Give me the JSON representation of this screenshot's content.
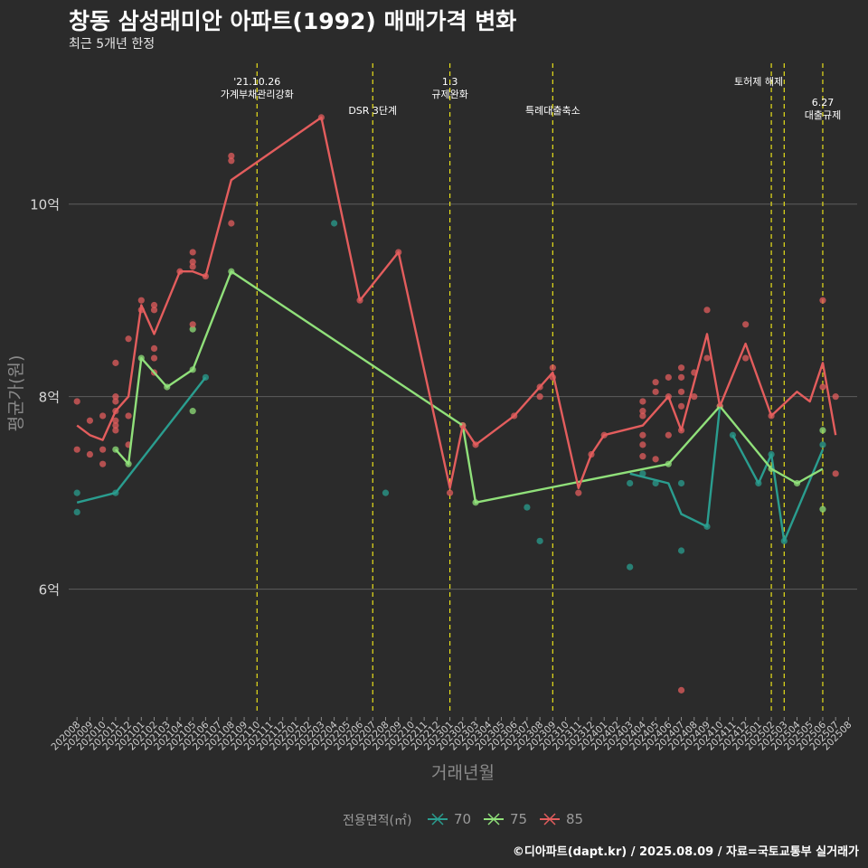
{
  "title": "창동 삼성래미안 아파트(1992) 매매가격 변화",
  "subtitle": "최근 5개년 한정",
  "caption": "©디아파트(dapt.kr) / 2025.08.09 / 자료=국토교통부 실거래가",
  "chart_data": {
    "type": "line",
    "xlabel": "거래년월",
    "ylabel": "평균가(원)",
    "ylim": [
      4.7,
      11.5
    ],
    "yticks": [
      {
        "v": 6,
        "label": "6억"
      },
      {
        "v": 8,
        "label": "8억"
      },
      {
        "v": 10,
        "label": "10억"
      }
    ],
    "grid": true,
    "legend_title": "전용면적(㎡)",
    "legend_position": "bottom",
    "categories": [
      "202008",
      "202009",
      "202010",
      "202011",
      "202012",
      "202101",
      "202102",
      "202103",
      "202104",
      "202105",
      "202106",
      "202107",
      "202108",
      "202109",
      "202110",
      "202111",
      "202112",
      "202201",
      "202202",
      "202203",
      "202204",
      "202205",
      "202206",
      "202207",
      "202208",
      "202209",
      "202210",
      "202211",
      "202212",
      "202301",
      "202302",
      "202303",
      "202304",
      "202305",
      "202306",
      "202307",
      "202308",
      "202309",
      "202310",
      "202311",
      "202312",
      "202401",
      "202402",
      "202403",
      "202404",
      "202405",
      "202406",
      "202407",
      "202408",
      "202409",
      "202410",
      "202411",
      "202412",
      "202501",
      "202502",
      "202503",
      "202504",
      "202505",
      "202506",
      "202507",
      "202508"
    ],
    "events": [
      {
        "x": "202110",
        "label": [
          "'21.10.26",
          "가계부채관리강화"
        ],
        "row": 0
      },
      {
        "x": "202207",
        "label": [
          "DSR 3단계"
        ],
        "row": 1
      },
      {
        "x": "202301",
        "label": [
          "1.3",
          "규제완화"
        ],
        "row": 0
      },
      {
        "x": "202309",
        "label": [
          "특례대출축소"
        ],
        "row": 1
      },
      {
        "x": "202502",
        "label": [
          "토허제 해제"
        ],
        "row": 0,
        "offset": 14
      },
      {
        "x": "202503",
        "label": [],
        "row": 0
      },
      {
        "x": "202506",
        "label": [
          "6.27",
          "대출규제"
        ],
        "row": 2
      }
    ],
    "series": [
      {
        "name": "70",
        "color": "#2a9d8f",
        "points": [
          [
            "202008",
            6.9
          ],
          [
            "202011",
            7.0
          ],
          [
            "202106",
            8.2
          ],
          [
            "202401",
            6.85
          ],
          [
            "202403",
            7.2
          ],
          [
            "202406",
            7.1
          ],
          [
            "202407",
            6.78
          ],
          [
            "202409",
            6.65
          ],
          [
            "202410",
            7.9
          ],
          [
            "202411",
            7.6
          ],
          [
            "202501",
            7.1
          ],
          [
            "202502",
            7.4
          ],
          [
            "202503",
            6.5
          ],
          [
            "202506",
            7.45
          ]
        ],
        "breaks": [
          "202401",
          "202403",
          "202411"
        ],
        "scatter": [
          [
            "202008",
            7.0
          ],
          [
            "202008",
            6.8
          ],
          [
            "202011",
            7.0
          ],
          [
            "202106",
            8.2
          ],
          [
            "202204",
            9.8
          ],
          [
            "202208",
            7.0
          ],
          [
            "202307",
            6.85
          ],
          [
            "202308",
            6.5
          ],
          [
            "202403",
            7.1
          ],
          [
            "202403",
            6.23
          ],
          [
            "202404",
            7.2
          ],
          [
            "202405",
            7.1
          ],
          [
            "202407",
            7.1
          ],
          [
            "202407",
            6.4
          ],
          [
            "202409",
            6.65
          ],
          [
            "202411",
            7.6
          ],
          [
            "202501",
            7.1
          ],
          [
            "202502",
            7.4
          ],
          [
            "202503",
            6.5
          ],
          [
            "202506",
            7.5
          ]
        ]
      },
      {
        "name": "75",
        "color": "#90e07a",
        "points": [
          [
            "202011",
            7.45
          ],
          [
            "202012",
            7.3
          ],
          [
            "202101",
            8.4
          ],
          [
            "202103",
            8.1
          ],
          [
            "202105",
            8.28
          ],
          [
            "202108",
            9.3
          ],
          [
            "202302",
            7.7
          ],
          [
            "202303",
            6.9
          ],
          [
            "202406",
            7.3
          ],
          [
            "202410",
            7.9
          ],
          [
            "202502",
            7.25
          ],
          [
            "202504",
            7.1
          ],
          [
            "202506",
            7.25
          ]
        ],
        "breaks": [],
        "scatter": [
          [
            "202011",
            7.45
          ],
          [
            "202012",
            7.3
          ],
          [
            "202101",
            8.4
          ],
          [
            "202103",
            8.1
          ],
          [
            "202105",
            8.28
          ],
          [
            "202105",
            8.7
          ],
          [
            "202105",
            7.85
          ],
          [
            "202108",
            9.3
          ],
          [
            "202302",
            7.7
          ],
          [
            "202303",
            6.9
          ],
          [
            "202406",
            7.3
          ],
          [
            "202410",
            7.9
          ],
          [
            "202502",
            7.25
          ],
          [
            "202504",
            7.1
          ],
          [
            "202506",
            7.65
          ],
          [
            "202506",
            6.83
          ]
        ]
      },
      {
        "name": "85",
        "color": "#e35d5d",
        "points": [
          [
            "202008",
            7.7
          ],
          [
            "202009",
            7.6
          ],
          [
            "202010",
            7.55
          ],
          [
            "202011",
            7.85
          ],
          [
            "202012",
            8.0
          ],
          [
            "202101",
            8.95
          ],
          [
            "202102",
            8.65
          ],
          [
            "202104",
            9.3
          ],
          [
            "202105",
            9.3
          ],
          [
            "202106",
            9.25
          ],
          [
            "202108",
            10.25
          ],
          [
            "202203",
            10.9
          ],
          [
            "202206",
            9.0
          ],
          [
            "202209",
            9.5
          ],
          [
            "202301",
            7.05
          ],
          [
            "202302",
            7.7
          ],
          [
            "202303",
            7.5
          ],
          [
            "202306",
            7.8
          ],
          [
            "202309",
            8.25
          ],
          [
            "202311",
            7.05
          ],
          [
            "202312",
            7.4
          ],
          [
            "202401",
            7.6
          ],
          [
            "202404",
            7.7
          ],
          [
            "202406",
            8.0
          ],
          [
            "202407",
            7.65
          ],
          [
            "202409",
            8.65
          ],
          [
            "202410",
            7.9
          ],
          [
            "202412",
            8.55
          ],
          [
            "202502",
            7.8
          ],
          [
            "202504",
            8.05
          ],
          [
            "202505",
            7.95
          ],
          [
            "202506",
            8.35
          ],
          [
            "202507",
            7.6
          ]
        ],
        "breaks": [],
        "scatter": [
          [
            "202008",
            7.95
          ],
          [
            "202008",
            7.45
          ],
          [
            "202009",
            7.75
          ],
          [
            "202009",
            7.4
          ],
          [
            "202010",
            7.8
          ],
          [
            "202010",
            7.45
          ],
          [
            "202010",
            7.3
          ],
          [
            "202011",
            8.35
          ],
          [
            "202011",
            8.0
          ],
          [
            "202011",
            7.95
          ],
          [
            "202011",
            7.85
          ],
          [
            "202011",
            7.75
          ],
          [
            "202011",
            7.7
          ],
          [
            "202011",
            7.65
          ],
          [
            "202012",
            8.6
          ],
          [
            "202012",
            7.8
          ],
          [
            "202012",
            7.5
          ],
          [
            "202101",
            9.0
          ],
          [
            "202101",
            8.9
          ],
          [
            "202102",
            8.95
          ],
          [
            "202102",
            8.9
          ],
          [
            "202102",
            8.5
          ],
          [
            "202102",
            8.4
          ],
          [
            "202102",
            8.25
          ],
          [
            "202104",
            9.3
          ],
          [
            "202105",
            9.5
          ],
          [
            "202105",
            9.4
          ],
          [
            "202105",
            9.35
          ],
          [
            "202105",
            8.75
          ],
          [
            "202106",
            9.25
          ],
          [
            "202108",
            10.5
          ],
          [
            "202108",
            10.45
          ],
          [
            "202108",
            9.8
          ],
          [
            "202203",
            10.9
          ],
          [
            "202206",
            9.0
          ],
          [
            "202209",
            9.5
          ],
          [
            "202301",
            7.0
          ],
          [
            "202302",
            7.7
          ],
          [
            "202303",
            7.5
          ],
          [
            "202306",
            7.8
          ],
          [
            "202308",
            8.1
          ],
          [
            "202308",
            8.0
          ],
          [
            "202309",
            8.3
          ],
          [
            "202309",
            8.2
          ],
          [
            "202311",
            7.0
          ],
          [
            "202312",
            7.4
          ],
          [
            "202401",
            7.6
          ],
          [
            "202404",
            7.95
          ],
          [
            "202404",
            7.85
          ],
          [
            "202404",
            7.8
          ],
          [
            "202404",
            7.6
          ],
          [
            "202404",
            7.5
          ],
          [
            "202404",
            7.38
          ],
          [
            "202405",
            8.15
          ],
          [
            "202405",
            8.05
          ],
          [
            "202405",
            7.35
          ],
          [
            "202406",
            8.2
          ],
          [
            "202406",
            8.0
          ],
          [
            "202406",
            7.6
          ],
          [
            "202407",
            8.3
          ],
          [
            "202407",
            8.2
          ],
          [
            "202407",
            8.05
          ],
          [
            "202407",
            7.9
          ],
          [
            "202407",
            7.65
          ],
          [
            "202407",
            4.95
          ],
          [
            "202408",
            8.25
          ],
          [
            "202408",
            8.0
          ],
          [
            "202409",
            8.9
          ],
          [
            "202409",
            8.4
          ],
          [
            "202410",
            7.9
          ],
          [
            "202412",
            8.75
          ],
          [
            "202412",
            8.4
          ],
          [
            "202502",
            7.8
          ],
          [
            "202506",
            9.0
          ],
          [
            "202506",
            8.1
          ],
          [
            "202507",
            8.0
          ],
          [
            "202507",
            7.2
          ]
        ]
      }
    ]
  }
}
